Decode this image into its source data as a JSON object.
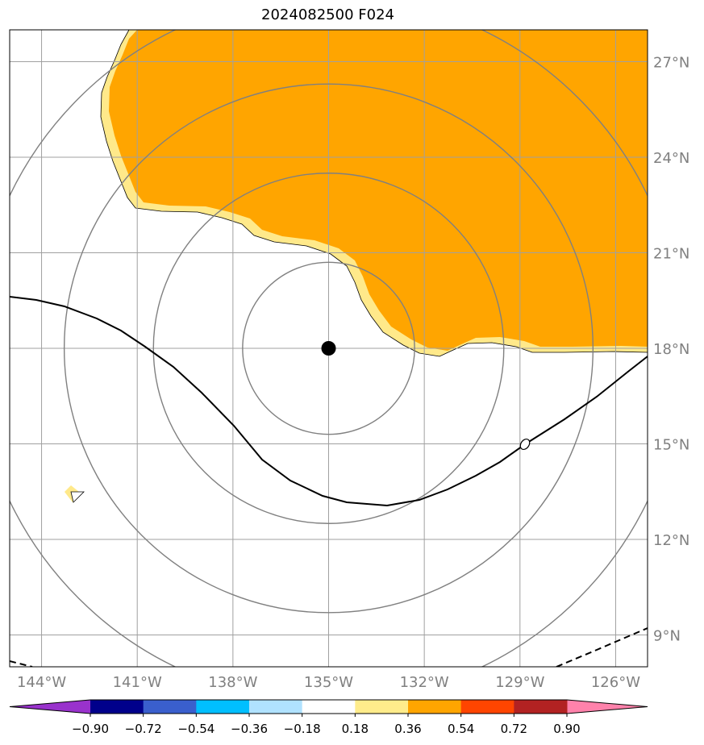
{
  "title": "2024082500 F024",
  "map": {
    "lon_range": [
      -145,
      -125
    ],
    "lat_range": [
      8,
      28
    ],
    "lon_ticks": [
      {
        "value": -144,
        "label": "144°W"
      },
      {
        "value": -141,
        "label": "141°W"
      },
      {
        "value": -138,
        "label": "138°W"
      },
      {
        "value": -135,
        "label": "135°W"
      },
      {
        "value": -132,
        "label": "132°W"
      },
      {
        "value": -129,
        "label": "129°W"
      },
      {
        "value": -126,
        "label": "126°W"
      }
    ],
    "lat_ticks": [
      {
        "value": 9,
        "label": "9°N"
      },
      {
        "value": 12,
        "label": "12°N"
      },
      {
        "value": 15,
        "label": "15°N"
      },
      {
        "value": 18,
        "label": "18°N"
      },
      {
        "value": 21,
        "label": "21°N"
      },
      {
        "value": 24,
        "label": "24°N"
      },
      {
        "value": 27,
        "label": "27°N"
      }
    ],
    "center": {
      "lon": -135,
      "lat": 18
    },
    "range_rings_deg_lat": [
      2.7,
      5.5,
      8.3,
      11.1
    ],
    "contour_label": "0",
    "colors": {
      "fill_high": "#ffa500",
      "fill_edge": "#ffe98a",
      "grid": "#a0a0a0",
      "ring": "#808080",
      "tick_label": "#808080"
    }
  },
  "colorbar": {
    "tick_labels": [
      "−0.90",
      "−0.72",
      "−0.54",
      "−0.36",
      "−0.18",
      "0.18",
      "0.36",
      "0.54",
      "0.72",
      "0.90"
    ],
    "bins": [
      "#9932cc",
      "#00008b",
      "#3a5fcd",
      "#00bfff",
      "#b0e2ff",
      "#ffffff",
      "#ffec8b",
      "#ffa500",
      "#ff4500",
      "#b22222",
      "#ff82ab"
    ]
  }
}
